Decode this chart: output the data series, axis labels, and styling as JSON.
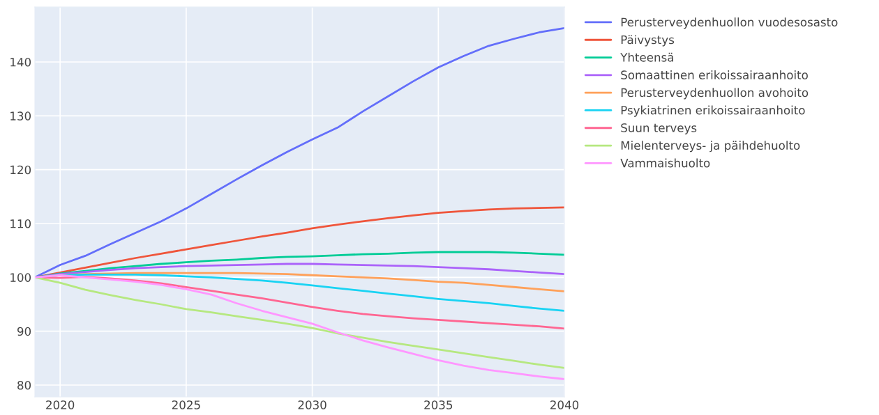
{
  "chart_data": {
    "type": "line",
    "x": [
      2019,
      2020,
      2021,
      2022,
      2023,
      2024,
      2025,
      2026,
      2027,
      2028,
      2029,
      2030,
      2031,
      2032,
      2033,
      2034,
      2035,
      2036,
      2037,
      2038,
      2039,
      2040
    ],
    "series": [
      {
        "name": "Perusterveydenhuollon vuodesosasto",
        "color": "#636efa",
        "values": [
          100,
          102.3,
          104,
          106.2,
          108.3,
          110.4,
          112.8,
          115.5,
          118.2,
          120.8,
          123.3,
          125.6,
          127.8,
          130.8,
          133.6,
          136.4,
          139,
          141.1,
          143,
          144.3,
          145.5,
          146.3
        ]
      },
      {
        "name": "Päivystys",
        "color": "#ef553b",
        "values": [
          100,
          100.9,
          101.8,
          102.7,
          103.6,
          104.4,
          105.2,
          106,
          106.8,
          107.6,
          108.3,
          109.1,
          109.8,
          110.4,
          111,
          111.5,
          112,
          112.3,
          112.6,
          112.8,
          112.9,
          113
        ]
      },
      {
        "name": "Yhteensä",
        "color": "#00cc96",
        "values": [
          100,
          100.7,
          101.2,
          101.7,
          102.1,
          102.5,
          102.8,
          103.1,
          103.3,
          103.6,
          103.8,
          103.9,
          104.1,
          104.3,
          104.4,
          104.6,
          104.7,
          104.7,
          104.7,
          104.6,
          104.4,
          104.2
        ]
      },
      {
        "name": "Somaattinen erikoissairaanhoito",
        "color": "#ab63fa",
        "values": [
          100,
          100.6,
          101,
          101.4,
          101.7,
          101.9,
          102.1,
          102.2,
          102.3,
          102.4,
          102.5,
          102.5,
          102.4,
          102.3,
          102.2,
          102.1,
          101.9,
          101.7,
          101.5,
          101.2,
          100.9,
          100.6
        ]
      },
      {
        "name": "Perusterveydenhuollon avohoito",
        "color": "#ffa15a",
        "values": [
          100,
          100.4,
          100.6,
          100.7,
          100.8,
          100.8,
          100.8,
          100.8,
          100.8,
          100.7,
          100.6,
          100.4,
          100.2,
          100,
          99.8,
          99.5,
          99.2,
          99,
          98.6,
          98.2,
          97.8,
          97.4
        ]
      },
      {
        "name": "Psykiatrinen erikoissairaanhoito",
        "color": "#19d3f3",
        "values": [
          100,
          100.4,
          100.5,
          100.5,
          100.5,
          100.4,
          100.2,
          100,
          99.7,
          99.4,
          99,
          98.5,
          98,
          97.5,
          97,
          96.5,
          96,
          95.6,
          95.2,
          94.7,
          94.2,
          93.8
        ]
      },
      {
        "name": "Suun terveys",
        "color": "#ff6692",
        "values": [
          100,
          99.9,
          100.1,
          99.8,
          99.4,
          98.9,
          98.2,
          97.5,
          96.8,
          96.1,
          95.3,
          94.5,
          93.8,
          93.2,
          92.8,
          92.4,
          92.1,
          91.8,
          91.5,
          91.2,
          90.9,
          90.5
        ]
      },
      {
        "name": "Mielenterveys- ja päihdehuolto",
        "color": "#b6e880",
        "values": [
          100,
          99,
          97.7,
          96.7,
          95.8,
          95,
          94.1,
          93.5,
          92.8,
          92.1,
          91.4,
          90.6,
          89.6,
          88.8,
          88,
          87.3,
          86.6,
          85.9,
          85.2,
          84.5,
          83.8,
          83.2
        ]
      },
      {
        "name": "Vammaishuolto",
        "color": "#ff97ff",
        "values": [
          100,
          100.4,
          100,
          99.6,
          99.2,
          98.6,
          97.8,
          96.8,
          95.2,
          93.8,
          92.6,
          91.4,
          89.8,
          88.3,
          87,
          85.8,
          84.6,
          83.6,
          82.8,
          82.2,
          81.6,
          81.1
        ]
      }
    ],
    "xlim": [
      2019,
      2040
    ],
    "ylim": [
      77.8,
      150.2
    ],
    "xticks": [
      2020,
      2025,
      2030,
      2035,
      2040
    ],
    "yticks": [
      80,
      90,
      100,
      110,
      120,
      130,
      140
    ],
    "grid": true,
    "legend": "right"
  }
}
